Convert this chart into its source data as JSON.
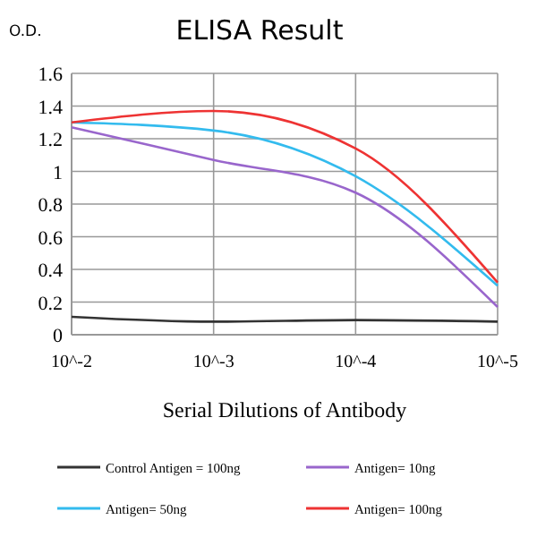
{
  "chart_data": {
    "type": "line",
    "title": "ELISA Result",
    "ylabel": "O.D.",
    "xlabel": "Serial Dilutions of Antibody",
    "categories": [
      "10^-2",
      "10^-3",
      "10^-4",
      "10^-5"
    ],
    "series": [
      {
        "name": "Control Antigen = 100ng",
        "color": "#333333",
        "values": [
          0.11,
          0.08,
          0.09,
          0.08
        ]
      },
      {
        "name": "Antigen= 10ng",
        "color": "#9966cc",
        "values": [
          1.27,
          1.07,
          0.87,
          0.17
        ]
      },
      {
        "name": "Antigen= 50ng",
        "color": "#33bbee",
        "values": [
          1.3,
          1.25,
          0.97,
          0.3
        ]
      },
      {
        "name": "Antigen= 100ng",
        "color": "#ee3333",
        "values": [
          1.3,
          1.37,
          1.14,
          0.32
        ]
      }
    ],
    "ylim": [
      0,
      1.6
    ],
    "yticks": [
      0,
      0.2,
      0.4,
      0.6,
      0.8,
      1,
      1.2,
      1.4,
      1.6
    ],
    "grid": true,
    "legend": "bottom",
    "marker": "none",
    "line_style": "solid"
  }
}
